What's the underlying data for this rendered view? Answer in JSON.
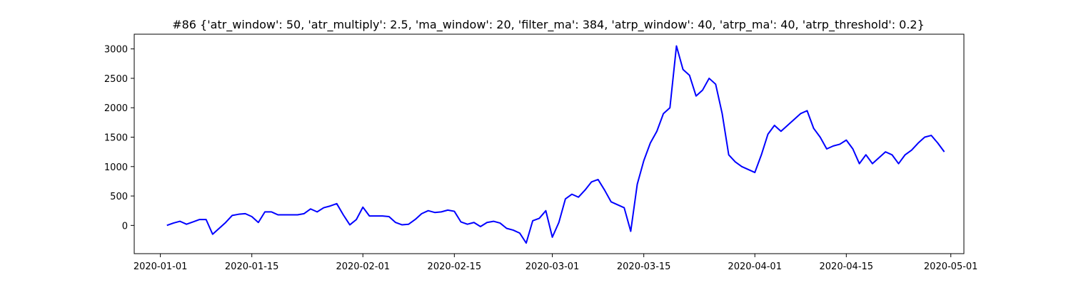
{
  "chart_data": {
    "type": "line",
    "title": "#86 {'atr_window': 50, 'atr_multiply': 2.5, 'ma_window': 20, 'filter_ma': 384, 'atrp_window': 40, 'atrp_ma': 40, 'atrp_threshold': 0.2}",
    "xlabel": "",
    "ylabel": "",
    "x_axis_type": "date",
    "xlim": [
      "2019-12-28",
      "2020-05-03"
    ],
    "ylim": [
      -480,
      3250
    ],
    "grid": false,
    "legend": "none",
    "line_color": "#0000ff",
    "x_ticks": [
      "2020-01-01",
      "2020-01-15",
      "2020-02-01",
      "2020-02-15",
      "2020-03-01",
      "2020-03-15",
      "2020-04-01",
      "2020-04-15",
      "2020-05-01"
    ],
    "y_ticks": [
      0,
      500,
      1000,
      1500,
      2000,
      2500,
      3000
    ],
    "series": [
      {
        "x": [
          "2020-01-02",
          "2020-01-03",
          "2020-01-04",
          "2020-01-05",
          "2020-01-06",
          "2020-01-07",
          "2020-01-08",
          "2020-01-09",
          "2020-01-10",
          "2020-01-11",
          "2020-01-12",
          "2020-01-13",
          "2020-01-14",
          "2020-01-15",
          "2020-01-16",
          "2020-01-17",
          "2020-01-18",
          "2020-01-19",
          "2020-01-20",
          "2020-01-21",
          "2020-01-22",
          "2020-01-23",
          "2020-01-24",
          "2020-01-25",
          "2020-01-26",
          "2020-01-27",
          "2020-01-28",
          "2020-01-29",
          "2020-01-30",
          "2020-01-31",
          "2020-02-01",
          "2020-02-02",
          "2020-02-03",
          "2020-02-04",
          "2020-02-05",
          "2020-02-06",
          "2020-02-07",
          "2020-02-08",
          "2020-02-09",
          "2020-02-10",
          "2020-02-11",
          "2020-02-12",
          "2020-02-13",
          "2020-02-14",
          "2020-02-15",
          "2020-02-16",
          "2020-02-17",
          "2020-02-18",
          "2020-02-19",
          "2020-02-20",
          "2020-02-21",
          "2020-02-22",
          "2020-02-23",
          "2020-02-24",
          "2020-02-25",
          "2020-02-26",
          "2020-02-27",
          "2020-02-28",
          "2020-02-29",
          "2020-03-01",
          "2020-03-02",
          "2020-03-03",
          "2020-03-04",
          "2020-03-05",
          "2020-03-06",
          "2020-03-07",
          "2020-03-08",
          "2020-03-09",
          "2020-03-10",
          "2020-03-11",
          "2020-03-12",
          "2020-03-13",
          "2020-03-14",
          "2020-03-15",
          "2020-03-16",
          "2020-03-17",
          "2020-03-18",
          "2020-03-19",
          "2020-03-20",
          "2020-03-21",
          "2020-03-22",
          "2020-03-23",
          "2020-03-24",
          "2020-03-25",
          "2020-03-26",
          "2020-03-27",
          "2020-03-28",
          "2020-03-29",
          "2020-03-30",
          "2020-03-31",
          "2020-04-01",
          "2020-04-02",
          "2020-04-03",
          "2020-04-04",
          "2020-04-05",
          "2020-04-06",
          "2020-04-07",
          "2020-04-08",
          "2020-04-09",
          "2020-04-10",
          "2020-04-11",
          "2020-04-12",
          "2020-04-13",
          "2020-04-14",
          "2020-04-15",
          "2020-04-16",
          "2020-04-17",
          "2020-04-18",
          "2020-04-19",
          "2020-04-20",
          "2020-04-21",
          "2020-04-22",
          "2020-04-23",
          "2020-04-24",
          "2020-04-25",
          "2020-04-26",
          "2020-04-27",
          "2020-04-28",
          "2020-04-29",
          "2020-04-30"
        ],
        "y": [
          0,
          40,
          70,
          20,
          60,
          100,
          100,
          -150,
          -50,
          50,
          170,
          190,
          200,
          150,
          50,
          230,
          230,
          180,
          180,
          180,
          180,
          200,
          280,
          230,
          300,
          330,
          370,
          180,
          10,
          100,
          310,
          160,
          160,
          160,
          150,
          50,
          10,
          20,
          100,
          200,
          250,
          220,
          230,
          260,
          240,
          60,
          20,
          50,
          -20,
          50,
          70,
          40,
          -50,
          -80,
          -130,
          -300,
          80,
          120,
          250,
          -200,
          50,
          450,
          530,
          480,
          600,
          740,
          780,
          600,
          400,
          350,
          300,
          -100,
          700,
          1100,
          1400,
          1600,
          1900,
          2000,
          3050,
          2650,
          2550,
          2200,
          2300,
          2500,
          2400,
          1900,
          1200,
          1080,
          1000,
          950,
          900,
          1200,
          1550,
          1700,
          1600,
          1700,
          1800,
          1900,
          1950,
          1650,
          1500,
          1300,
          1350,
          1380,
          1450,
          1300,
          1050,
          1200,
          1050,
          1150,
          1250,
          1200,
          1050,
          1200,
          1280,
          1400,
          1500,
          1530,
          1400,
          1250
        ]
      }
    ]
  }
}
